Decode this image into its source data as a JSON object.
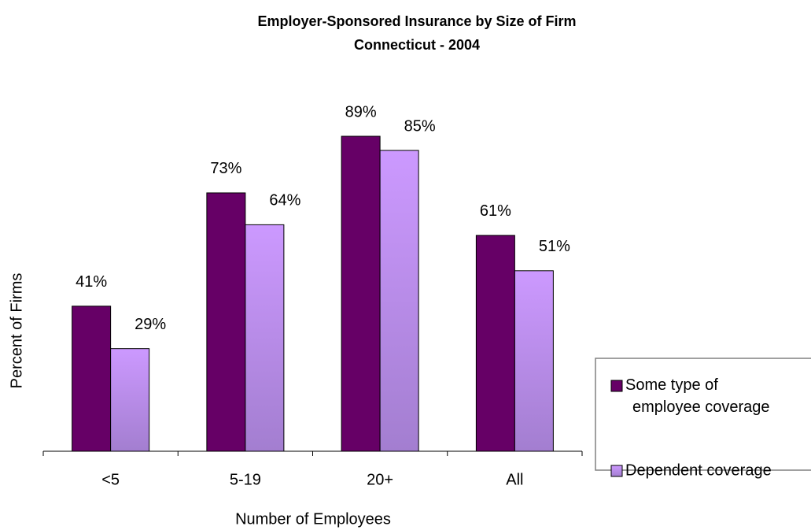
{
  "chart_data": {
    "type": "bar",
    "title": "Employer-Sponsored Insurance by Size of Firm",
    "subtitle": "Connecticut - 2004",
    "x_label": "Number of Employees",
    "y_label": "Percent of Firms",
    "categories": [
      "<5",
      "5-19",
      "20+",
      "All"
    ],
    "series": [
      {
        "name": "Some type of employee coverage",
        "color": "#660066",
        "values": [
          41,
          73,
          89,
          61
        ],
        "value_labels": [
          "41%",
          "73%",
          "89%",
          "61%"
        ]
      },
      {
        "name": "Dependent coverage",
        "color": "#cc99ff",
        "values": [
          29,
          64,
          85,
          51
        ],
        "value_labels": [
          "29%",
          "64%",
          "85%",
          "51%"
        ]
      }
    ],
    "legend": "right"
  }
}
